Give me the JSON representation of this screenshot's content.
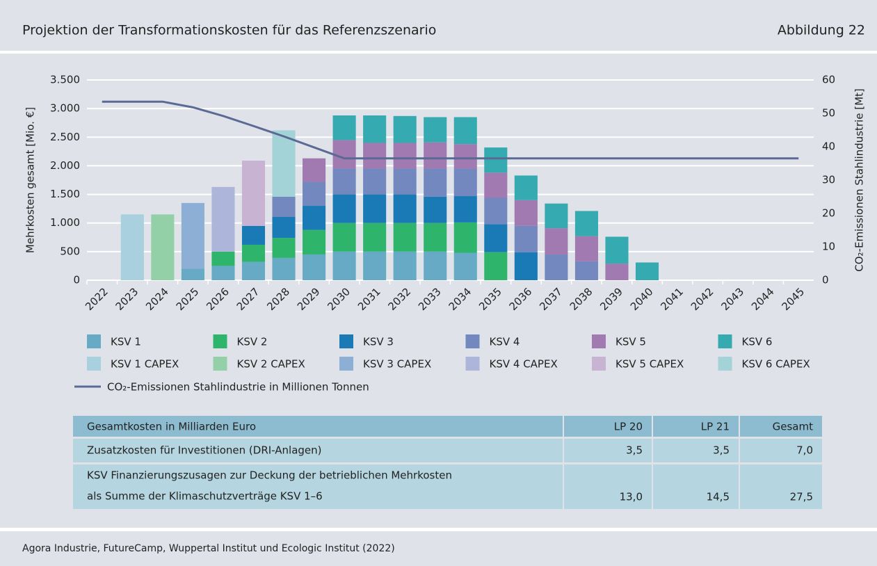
{
  "header": {
    "title": "Projektion der Transformationskosten für das Referenzszenario",
    "figure": "Abbildung 22"
  },
  "chart_data": {
    "type": "bar",
    "stacked": true,
    "y_label": "Mehrkosten gesamt [Mio. €]",
    "y2_label": "CO₂-Emissionen Stahlindustrie [Mt]",
    "categories": [
      "2022",
      "2023",
      "2024",
      "2025",
      "2026",
      "2027",
      "2028",
      "2029",
      "2030",
      "2031",
      "2032",
      "2033",
      "2034",
      "2035",
      "2036",
      "2037",
      "2038",
      "2039",
      "2040",
      "2041",
      "2042",
      "2043",
      "2044",
      "2045"
    ],
    "ylim": [
      0,
      3500
    ],
    "yticks": [
      0,
      500,
      {
        "value": 1000,
        "label": "1.000"
      },
      {
        "value": 1500,
        "label": "1.500"
      },
      {
        "value": 2000,
        "label": "2.000"
      },
      {
        "value": 2500,
        "label": "2.500"
      },
      {
        "value": 3000,
        "label": "3.000"
      },
      {
        "value": 3500,
        "label": "3.500"
      }
    ],
    "y2lim": [
      0,
      60
    ],
    "y2ticks": [
      0,
      10,
      20,
      30,
      40,
      50,
      60
    ],
    "grid": true,
    "series": [
      {
        "name": "KSV 1",
        "color": "#66aac6",
        "values": [
          0,
          0,
          0,
          200,
          250,
          320,
          390,
          450,
          500,
          500,
          500,
          500,
          480,
          0,
          0,
          0,
          0,
          0,
          0,
          0,
          0,
          0,
          0,
          0
        ]
      },
      {
        "name": "KSV 2",
        "color": "#2fb46c",
        "values": [
          0,
          0,
          0,
          0,
          250,
          300,
          350,
          430,
          500,
          500,
          500,
          500,
          530,
          490,
          0,
          0,
          0,
          0,
          0,
          0,
          0,
          0,
          0,
          0
        ]
      },
      {
        "name": "KSV 3",
        "color": "#1a7ab5",
        "values": [
          0,
          0,
          0,
          0,
          0,
          330,
          370,
          420,
          500,
          500,
          500,
          460,
          460,
          490,
          490,
          0,
          0,
          0,
          0,
          0,
          0,
          0,
          0,
          0
        ]
      },
      {
        "name": "KSV 4",
        "color": "#7288be",
        "values": [
          0,
          0,
          0,
          0,
          0,
          0,
          350,
          420,
          450,
          450,
          450,
          490,
          480,
          460,
          460,
          450,
          330,
          0,
          0,
          0,
          0,
          0,
          0,
          0
        ]
      },
      {
        "name": "KSV 5",
        "color": "#a07ab0",
        "values": [
          0,
          0,
          0,
          0,
          0,
          0,
          0,
          410,
          500,
          450,
          450,
          460,
          430,
          440,
          450,
          460,
          440,
          290,
          0,
          0,
          0,
          0,
          0,
          0
        ]
      },
      {
        "name": "KSV 6",
        "color": "#35aab0",
        "values": [
          0,
          0,
          0,
          0,
          0,
          0,
          0,
          0,
          430,
          480,
          470,
          440,
          470,
          440,
          430,
          430,
          440,
          470,
          310,
          0,
          0,
          0,
          0,
          0
        ]
      },
      {
        "name": "KSV 1 CAPEX",
        "color": "#a9d0de",
        "values": [
          0,
          1150,
          0,
          0,
          0,
          0,
          0,
          0,
          0,
          0,
          0,
          0,
          0,
          0,
          0,
          0,
          0,
          0,
          0,
          0,
          0,
          0,
          0,
          0
        ]
      },
      {
        "name": "KSV 2 CAPEX",
        "color": "#93d0a8",
        "values": [
          0,
          0,
          1150,
          0,
          0,
          0,
          0,
          0,
          0,
          0,
          0,
          0,
          0,
          0,
          0,
          0,
          0,
          0,
          0,
          0,
          0,
          0,
          0,
          0
        ]
      },
      {
        "name": "KSV 3 CAPEX",
        "color": "#8dafd6",
        "values": [
          0,
          0,
          0,
          1150,
          0,
          0,
          0,
          0,
          0,
          0,
          0,
          0,
          0,
          0,
          0,
          0,
          0,
          0,
          0,
          0,
          0,
          0,
          0,
          0
        ]
      },
      {
        "name": "KSV 4 CAPEX",
        "color": "#adb6da",
        "values": [
          0,
          0,
          0,
          0,
          1130,
          0,
          0,
          0,
          0,
          0,
          0,
          0,
          0,
          0,
          0,
          0,
          0,
          0,
          0,
          0,
          0,
          0,
          0,
          0
        ]
      },
      {
        "name": "KSV 5 CAPEX",
        "color": "#c8b3d3",
        "values": [
          0,
          0,
          0,
          0,
          0,
          1140,
          0,
          0,
          0,
          0,
          0,
          0,
          0,
          0,
          0,
          0,
          0,
          0,
          0,
          0,
          0,
          0,
          0,
          0
        ]
      },
      {
        "name": "KSV 6 CAPEX",
        "color": "#a3d3d7",
        "values": [
          0,
          0,
          0,
          0,
          0,
          0,
          1160,
          0,
          0,
          0,
          0,
          0,
          0,
          0,
          0,
          0,
          0,
          0,
          0,
          0,
          0,
          0,
          0,
          0
        ]
      },
      {
        "name": "CO₂-Emissionen Stahlindustrie in Millionen Tonnen",
        "color": "#5b6a94",
        "type": "line",
        "axis": "y2",
        "values": [
          53.5,
          53.5,
          53.5,
          51.8,
          49.2,
          46.2,
          43.1,
          39.8,
          36.5,
          36.5,
          36.5,
          36.5,
          36.5,
          36.5,
          36.5,
          36.5,
          36.5,
          36.5,
          36.5,
          36.5,
          36.5,
          36.5,
          36.5,
          36.5
        ]
      }
    ]
  },
  "table": {
    "header": [
      "Gesamtkosten in Milliarden Euro",
      "LP 20",
      "LP 21",
      "Gesamt"
    ],
    "rows": [
      [
        [
          "Zusatzkosten für Investitionen (DRI-Anlagen)"
        ],
        "3,5",
        "3,5",
        "7,0"
      ],
      [
        [
          "KSV Finanzierungszusagen zur Deckung der betrieblichen Mehrkosten",
          "als Summe der Klimaschutzverträge KSV 1–6"
        ],
        "13,0",
        "14,5",
        "27,5"
      ]
    ]
  },
  "source": "Agora Industrie, FutureCamp, Wuppertal Institut und Ecologic Institut (2022)"
}
